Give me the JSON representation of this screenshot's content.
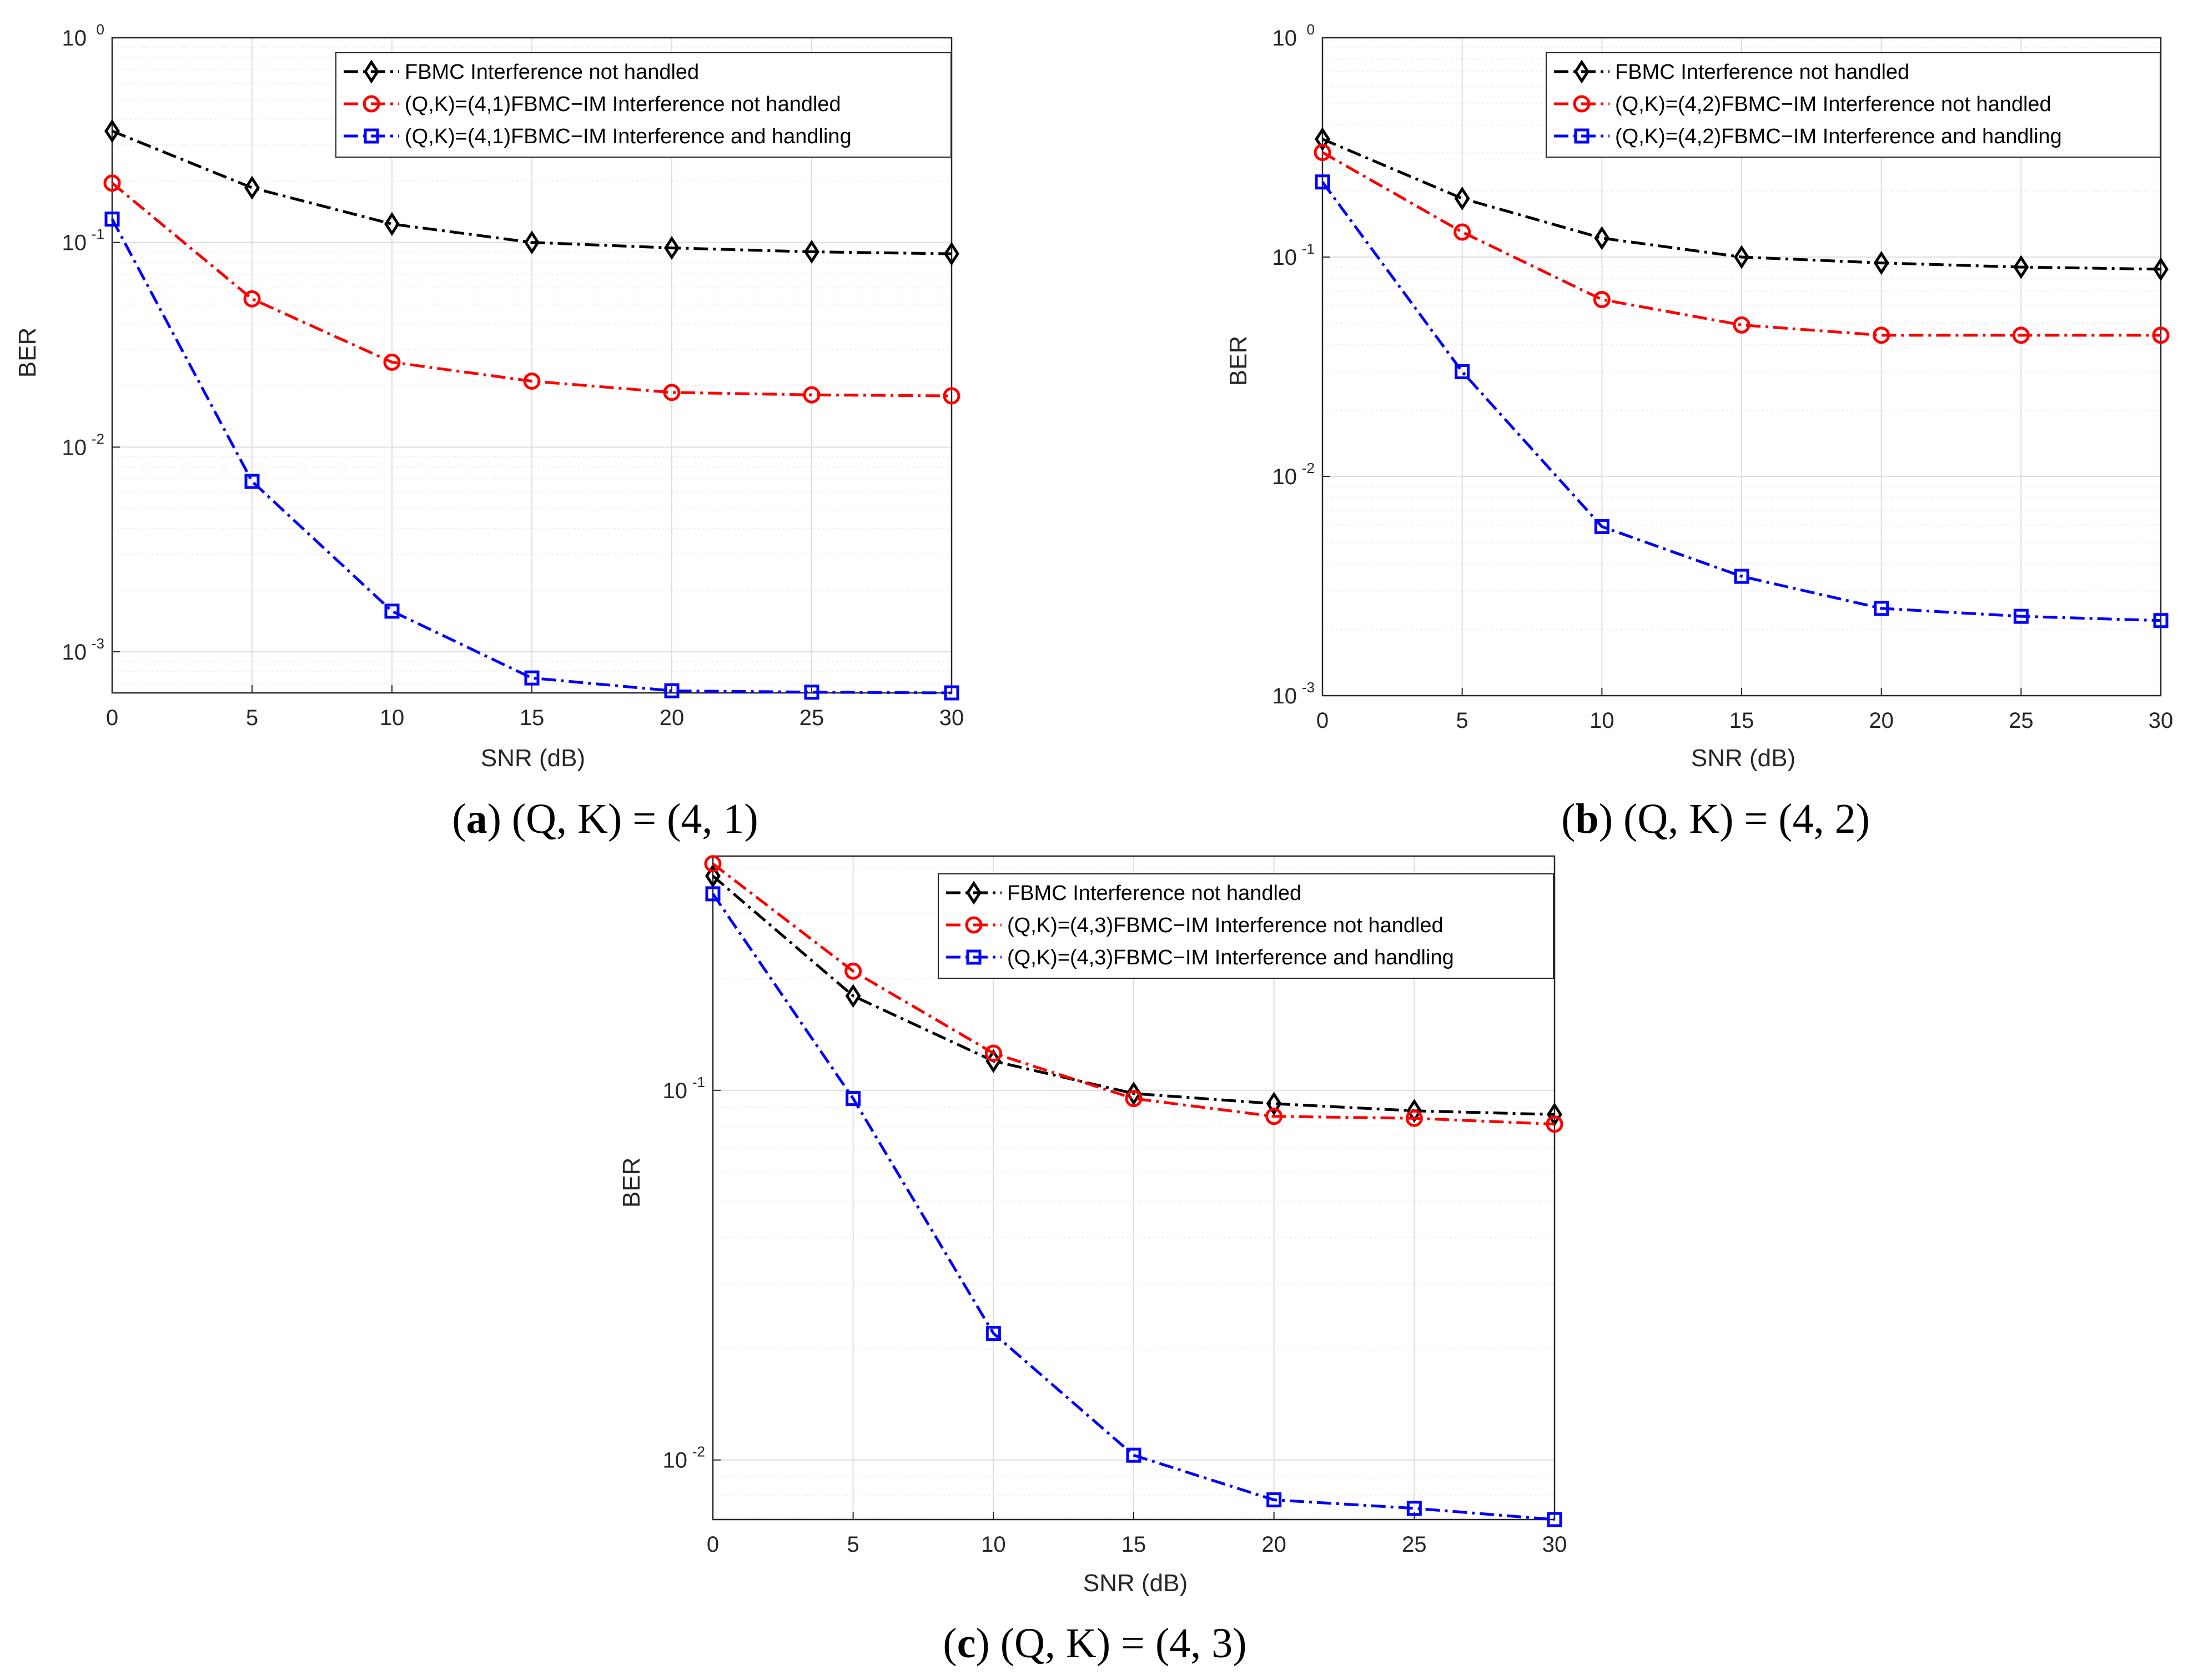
{
  "colors": {
    "series_0": "#000000",
    "series_1": "#ff0000",
    "series_2": "#0000ff",
    "grid": "#dedede",
    "axes": "#262626"
  },
  "chart_data": [
    {
      "type": "line",
      "caption_letter": "a",
      "caption_rest": " (Q, K) = (4, 1)",
      "xlabel": "SNR (dB)",
      "ylabel": "BER",
      "yscale": "log",
      "xlim": [
        0,
        30
      ],
      "ylim": [
        0.00063,
        1
      ],
      "x_ticks": [
        "0",
        "5",
        "10",
        "15",
        "20",
        "25",
        "30"
      ],
      "y_ticks": [
        {
          "base": "10",
          "exp": "-3"
        },
        {
          "base": "10",
          "exp": "-2"
        },
        {
          "base": "10",
          "exp": "-1"
        },
        {
          "base": "10",
          "exp": "0"
        }
      ],
      "x": [
        0,
        5,
        10,
        15,
        20,
        25,
        30
      ],
      "series": [
        {
          "name": "FBMC Interference not handled",
          "marker": "diamond",
          "values": [
            0.35,
            0.185,
            0.123,
            0.1,
            0.094,
            0.09,
            0.088
          ]
        },
        {
          "name": "(Q,K)=(4,1)FBMC−IM Interference not handled",
          "marker": "circle",
          "values": [
            0.195,
            0.053,
            0.026,
            0.021,
            0.0185,
            0.018,
            0.0178
          ]
        },
        {
          "name": "(Q,K)=(4,1)FBMC−IM Interference and handling",
          "marker": "square",
          "values": [
            0.13,
            0.0068,
            0.00158,
            0.000745,
            0.000645,
            0.000635,
            0.00063
          ]
        }
      ]
    },
    {
      "type": "line",
      "caption_letter": "b",
      "caption_rest": " (Q, K) = (4, 2)",
      "xlabel": "SNR (dB)",
      "ylabel": "BER",
      "yscale": "log",
      "xlim": [
        0,
        30
      ],
      "ylim": [
        0.001,
        1
      ],
      "x_ticks": [
        "0",
        "5",
        "10",
        "15",
        "20",
        "25",
        "30"
      ],
      "y_ticks": [
        {
          "base": "10",
          "exp": "-3"
        },
        {
          "base": "10",
          "exp": "-2"
        },
        {
          "base": "10",
          "exp": "-1"
        },
        {
          "base": "10",
          "exp": "0"
        }
      ],
      "x": [
        0,
        5,
        10,
        15,
        20,
        25,
        30
      ],
      "series": [
        {
          "name": "FBMC Interference not handled",
          "marker": "diamond",
          "values": [
            0.345,
            0.185,
            0.122,
            0.1,
            0.094,
            0.09,
            0.088
          ]
        },
        {
          "name": "(Q,K)=(4,2)FBMC−IM Interference not handled",
          "marker": "circle",
          "values": [
            0.3,
            0.13,
            0.064,
            0.049,
            0.044,
            0.044,
            0.044
          ]
        },
        {
          "name": "(Q,K)=(4,2)FBMC−IM Interference and handling",
          "marker": "square",
          "values": [
            0.22,
            0.03,
            0.0059,
            0.0035,
            0.0025,
            0.0023,
            0.0022
          ]
        }
      ]
    },
    {
      "type": "line",
      "caption_letter": "c",
      "caption_rest": " (Q, K) = (4, 3)",
      "xlabel": "SNR (dB)",
      "ylabel": "BER",
      "yscale": "log",
      "xlim": [
        0,
        30
      ],
      "ylim": [
        0.0069,
        0.43
      ],
      "x_ticks": [
        "0",
        "5",
        "10",
        "15",
        "20",
        "25",
        "30"
      ],
      "y_ticks": [
        {
          "base": "10",
          "exp": "-2"
        },
        {
          "base": "10",
          "exp": "-1"
        }
      ],
      "x": [
        0,
        5,
        10,
        15,
        20,
        25,
        30
      ],
      "series": [
        {
          "name": "FBMC Interference not handled",
          "marker": "diamond",
          "values": [
            0.38,
            0.18,
            0.12,
            0.098,
            0.092,
            0.088,
            0.086
          ]
        },
        {
          "name": "(Q,K)=(4,3)FBMC−IM Interference not handled",
          "marker": "circle",
          "values": [
            0.41,
            0.21,
            0.126,
            0.095,
            0.085,
            0.084,
            0.081
          ]
        },
        {
          "name": "(Q,K)=(4,3)FBMC−IM Interference and handling",
          "marker": "square",
          "values": [
            0.34,
            0.095,
            0.022,
            0.0103,
            0.0078,
            0.0074,
            0.0069
          ]
        }
      ]
    }
  ]
}
